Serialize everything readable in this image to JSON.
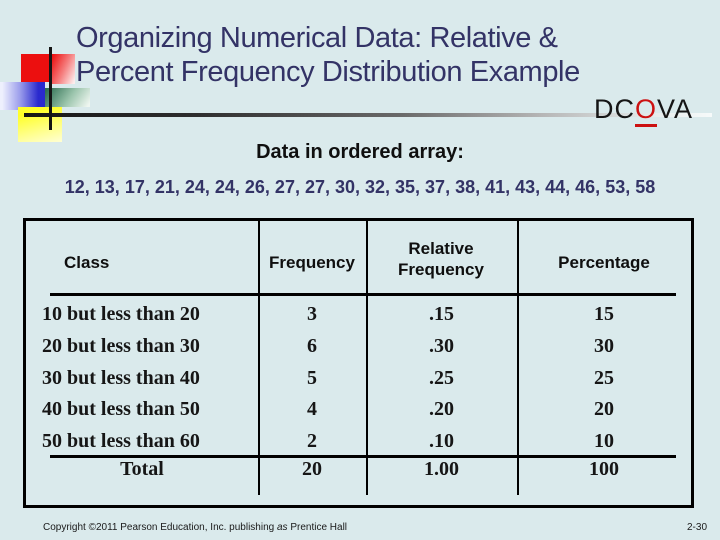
{
  "slide": {
    "title": {
      "line1": "Organizing Numerical Data: Relative &",
      "line2": "Percent Frequency Distribution Example"
    },
    "dcova": {
      "prefix": "DC",
      "highlighted_letter": "O",
      "suffix": "VA"
    },
    "ordered_array": {
      "heading": "Data in ordered array:",
      "values": "12, 13, 17, 21, 24, 24, 26, 27, 27, 30, 32, 35, 37, 38, 41, 43, 44, 46, 53, 58"
    },
    "table": {
      "headers": {
        "class": "Class",
        "frequency": "Frequency",
        "relative_frequency": "Relative Frequency",
        "percentage": "Percentage"
      },
      "rows": [
        {
          "class": "10 but less than 20",
          "frequency": "3",
          "relative_frequency": ".15",
          "percentage": "15"
        },
        {
          "class": "20 but less than 30",
          "frequency": "6",
          "relative_frequency": ".30",
          "percentage": "30"
        },
        {
          "class": "30 but less than 40",
          "frequency": "5",
          "relative_frequency": ".25",
          "percentage": "25"
        },
        {
          "class": "40 but less than 50",
          "frequency": "4",
          "relative_frequency": ".20",
          "percentage": "20"
        },
        {
          "class": "50 but less than 60",
          "frequency": "2",
          "relative_frequency": ".10",
          "percentage": "10"
        }
      ],
      "total_row": {
        "class": "Total",
        "frequency": "20",
        "relative_frequency": "1.00",
        "percentage": "100"
      }
    },
    "footer": {
      "copyright_before_as": "Copyright ©2011 Pearson Education, Inc. publishing ",
      "copyright_as": "as",
      "copyright_after_as": " Prentice Hall",
      "page_number": "2-30"
    },
    "colors": {
      "background": "#daeaec",
      "title_text": "#333366",
      "array_text": "#333366",
      "dcova_highlight": "#cc1111",
      "decor_red": "#ec0f0f",
      "decor_blue": "#2a2ace",
      "decor_green": "#2f6f52",
      "decor_yellow": "#ffff2a"
    }
  }
}
